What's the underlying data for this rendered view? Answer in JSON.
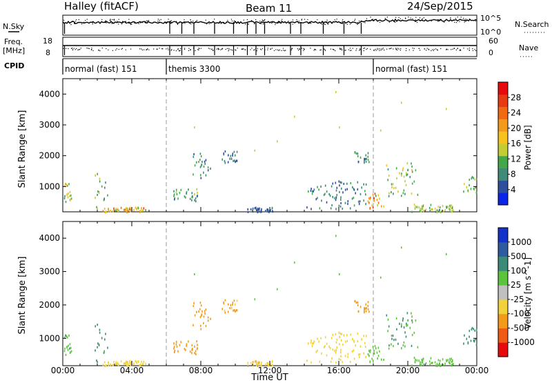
{
  "header": {
    "site": "Halley (fitACF)",
    "beam": "Beam 11",
    "date": "24/Sep/2015"
  },
  "summary": {
    "nsky_label": "N.Sky",
    "nsearch_label": "N.Search",
    "freq_label": "Freq.",
    "freq_unit": "[MHz]",
    "nave_label": "Nave",
    "cpid_label": "CPID",
    "log_tick_hi": "10^5",
    "log_tick_lo": "10^0",
    "freq_ticks": [
      "18",
      "8"
    ],
    "nave_ticks": [
      "60",
      "0"
    ],
    "cpid_segments": [
      {
        "label": "normal (fast) 151",
        "start_h": 0,
        "end_h": 6
      },
      {
        "label": "themis 3300",
        "start_h": 6,
        "end_h": 18
      },
      {
        "label": "normal (fast) 151",
        "start_h": 18,
        "end_h": 24
      }
    ],
    "nsky_dips_h": [
      0.1,
      6.2,
      6.9,
      7.6,
      8.8,
      9.9,
      10.7,
      11.2,
      11.7,
      13.2,
      13.8,
      15.1,
      16.3,
      17.3
    ]
  },
  "axes": {
    "x_ticks": [
      "00:00",
      "04:00",
      "08:00",
      "12:00",
      "16:00",
      "20:00",
      "00:00"
    ],
    "x_label": "Time UT",
    "y_label": "Slant Range [km]",
    "y_ticks": [
      "1000",
      "2000",
      "3000",
      "4000"
    ]
  },
  "colorbars": {
    "power": {
      "label": "Power [dB]",
      "ticks": [
        "4",
        "8",
        "12",
        "16",
        "20",
        "24",
        "28"
      ],
      "colors": [
        "#0a24e8",
        "#2e4f9e",
        "#3f8a78",
        "#44a84a",
        "#c2cc33",
        "#f7c21e",
        "#f49a1a",
        "#f06a14",
        "#e83a12",
        "#e60a0a"
      ]
    },
    "velocity": {
      "label": "Velocity [m s^-1]",
      "ticks": [
        "1000",
        "500",
        "100",
        "25",
        "-25",
        "-100",
        "-500",
        "-1000"
      ],
      "colors": [
        "#1432c8",
        "#2e5aa0",
        "#3c8a78",
        "#5cc43c",
        "#c0c0c0",
        "#f2d23a",
        "#f49a1a",
        "#f05a14",
        "#e60a0a"
      ]
    }
  },
  "chart_data": [
    {
      "type": "scatter",
      "panel": "power",
      "x_unit": "hours UT",
      "xlim": [
        0,
        24
      ],
      "ylim": [
        180,
        4500
      ],
      "ylabel": "Slant Range [km]",
      "mode_changes_h": [
        6,
        18
      ],
      "clusters": [
        {
          "x": [
            0,
            0.6
          ],
          "y": [
            400,
            1150
          ],
          "v": 14
        },
        {
          "x": [
            1.8,
            2.6
          ],
          "y": [
            300,
            1500
          ],
          "v": 10
        },
        {
          "x": [
            2.3,
            4.8
          ],
          "y": [
            200,
            350
          ],
          "v": 18
        },
        {
          "x": [
            6.4,
            7.8
          ],
          "y": [
            550,
            950
          ],
          "v": 9
        },
        {
          "x": [
            7.5,
            8.6
          ],
          "y": [
            1300,
            2100
          ],
          "v": 8
        },
        {
          "x": [
            9.2,
            10.2
          ],
          "y": [
            1800,
            2200
          ],
          "v": 6
        },
        {
          "x": [
            10.6,
            12.2
          ],
          "y": [
            200,
            350
          ],
          "v": 5
        },
        {
          "x": [
            14.0,
            17.6
          ],
          "y": [
            300,
            1200
          ],
          "v": 7
        },
        {
          "x": [
            16.8,
            17.8
          ],
          "y": [
            1800,
            2200
          ],
          "v": 8
        },
        {
          "x": [
            17.6,
            18.6
          ],
          "y": [
            300,
            800
          ],
          "v": 19
        },
        {
          "x": [
            18.6,
            20.6
          ],
          "y": [
            700,
            1800
          ],
          "v": 12
        },
        {
          "x": [
            20.2,
            22.6
          ],
          "y": [
            200,
            450
          ],
          "v": 12
        },
        {
          "x": [
            23.2,
            24.0
          ],
          "y": [
            800,
            1400
          ],
          "v": 13
        }
      ],
      "sparse_points": [
        [
          15.8,
          4100
        ],
        [
          13.4,
          3300
        ],
        [
          7.6,
          2950
        ],
        [
          16.0,
          2950
        ],
        [
          18.4,
          2850
        ],
        [
          19.6,
          3750
        ],
        [
          22.2,
          3550
        ],
        [
          12.4,
          2500
        ],
        [
          11.1,
          2200
        ]
      ]
    },
    {
      "type": "scatter",
      "panel": "velocity",
      "x_unit": "hours UT",
      "xlim": [
        0,
        24
      ],
      "ylim": [
        180,
        4500
      ],
      "ylabel": "Slant Range [km]",
      "mode_changes_h": [
        6,
        18
      ],
      "clusters": [
        {
          "x": [
            0,
            0.6
          ],
          "y": [
            400,
            1150
          ],
          "v": 80
        },
        {
          "x": [
            1.8,
            2.6
          ],
          "y": [
            300,
            1500
          ],
          "v": 150
        },
        {
          "x": [
            2.3,
            4.8
          ],
          "y": [
            200,
            350
          ],
          "v": -60
        },
        {
          "x": [
            6.4,
            7.8
          ],
          "y": [
            550,
            950
          ],
          "v": -300
        },
        {
          "x": [
            7.5,
            8.6
          ],
          "y": [
            1300,
            2100
          ],
          "v": -150
        },
        {
          "x": [
            9.2,
            10.2
          ],
          "y": [
            1800,
            2200
          ],
          "v": -120
        },
        {
          "x": [
            10.6,
            12.2
          ],
          "y": [
            200,
            350
          ],
          "v": -80
        },
        {
          "x": [
            14.0,
            17.6
          ],
          "y": [
            300,
            1200
          ],
          "v": -60
        },
        {
          "x": [
            16.8,
            17.8
          ],
          "y": [
            1800,
            2200
          ],
          "v": -200
        },
        {
          "x": [
            17.6,
            18.6
          ],
          "y": [
            300,
            800
          ],
          "v": 60
        },
        {
          "x": [
            18.6,
            20.6
          ],
          "y": [
            700,
            1800
          ],
          "v": 100
        },
        {
          "x": [
            20.2,
            22.6
          ],
          "y": [
            200,
            450
          ],
          "v": 40
        },
        {
          "x": [
            23.2,
            24.0
          ],
          "y": [
            800,
            1400
          ],
          "v": 150
        }
      ],
      "sparse_points": [
        [
          15.8,
          4100
        ],
        [
          13.4,
          3300
        ],
        [
          7.6,
          2950
        ],
        [
          16.0,
          2950
        ],
        [
          18.4,
          2850
        ],
        [
          19.6,
          3750
        ],
        [
          22.2,
          3550
        ],
        [
          12.4,
          2500
        ],
        [
          11.1,
          2200
        ]
      ]
    }
  ]
}
